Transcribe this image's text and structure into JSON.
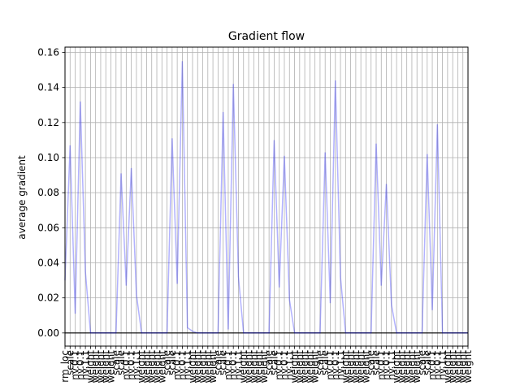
{
  "chart_data": {
    "type": "line",
    "title": "Gradient flow",
    "xlabel": "",
    "ylabel": "average gradient",
    "ylim": [
      -0.0075,
      0.163
    ],
    "yticks": [
      0.0,
      0.02,
      0.04,
      0.06,
      0.08,
      0.1,
      0.12,
      0.14,
      0.16
    ],
    "grid": true,
    "line_color": "#0000ff",
    "line_alpha": 0.3,
    "zero_line_color": "#000000",
    "categories": [
      "rm_loc",
      "scale",
      "nv.0.1",
      "nv.0.1",
      "nv.1.1",
      "weight",
      "weight",
      "weight",
      "weight",
      "weight",
      "scale",
      "scale",
      "nv.0.1",
      "nv.0.1",
      "nv.1.1",
      "weight",
      "weight",
      "weight",
      "weight",
      "weight",
      "scale",
      "scale",
      "nv.0.1",
      "nv.0.1",
      "nv.1.1",
      "weight",
      "weight",
      "weight",
      "weight",
      "weight",
      "scale",
      "scale",
      "nv.0.1",
      "nv.0.1",
      "nv.1.1",
      "weight",
      "weight",
      "weight",
      "weight",
      "weight",
      "scale",
      "scale",
      "nv.0.1",
      "nv.0.1",
      "nv.1.1",
      "weight",
      "weight",
      "weight",
      "weight",
      "weight",
      "scale",
      "scale",
      "nv.0.1",
      "nv.0.1",
      "nv.1.1",
      "weight",
      "weight",
      "weight",
      "weight",
      "weight",
      "scale",
      "scale",
      "nv.0.1",
      "nv.0.1",
      "nv.1.1",
      "weight",
      "weight",
      "weight",
      "weight",
      "weight",
      "scale",
      "scale",
      "nv.0.1",
      "nv.0.1",
      "nv.1.1",
      "weight",
      "weight",
      "weight",
      "weight",
      "weight"
    ],
    "values": [
      0.03,
      0.107,
      0.011,
      0.132,
      0.035,
      0.0,
      0.0,
      0.0,
      0.0,
      0.0,
      0.0,
      0.091,
      0.027,
      0.094,
      0.022,
      0.0,
      0.0,
      0.0,
      0.0,
      0.0,
      0.0,
      0.111,
      0.028,
      0.155,
      0.003,
      0.001,
      0.0,
      0.0,
      0.0,
      0.0,
      0.0,
      0.126,
      0.002,
      0.142,
      0.032,
      0.0,
      0.0,
      0.0,
      0.0,
      0.0,
      0.0,
      0.11,
      0.026,
      0.101,
      0.019,
      0.0,
      0.0,
      0.0,
      0.0,
      0.0,
      0.0,
      0.103,
      0.017,
      0.144,
      0.032,
      0.0,
      0.0,
      0.0,
      0.0,
      0.0,
      0.0,
      0.108,
      0.027,
      0.085,
      0.016,
      0.0,
      0.0,
      0.0,
      0.0,
      0.0,
      0.0,
      0.102,
      0.013,
      0.119,
      0.0,
      0.0,
      0.0,
      0.0,
      0.0,
      0.0
    ]
  }
}
